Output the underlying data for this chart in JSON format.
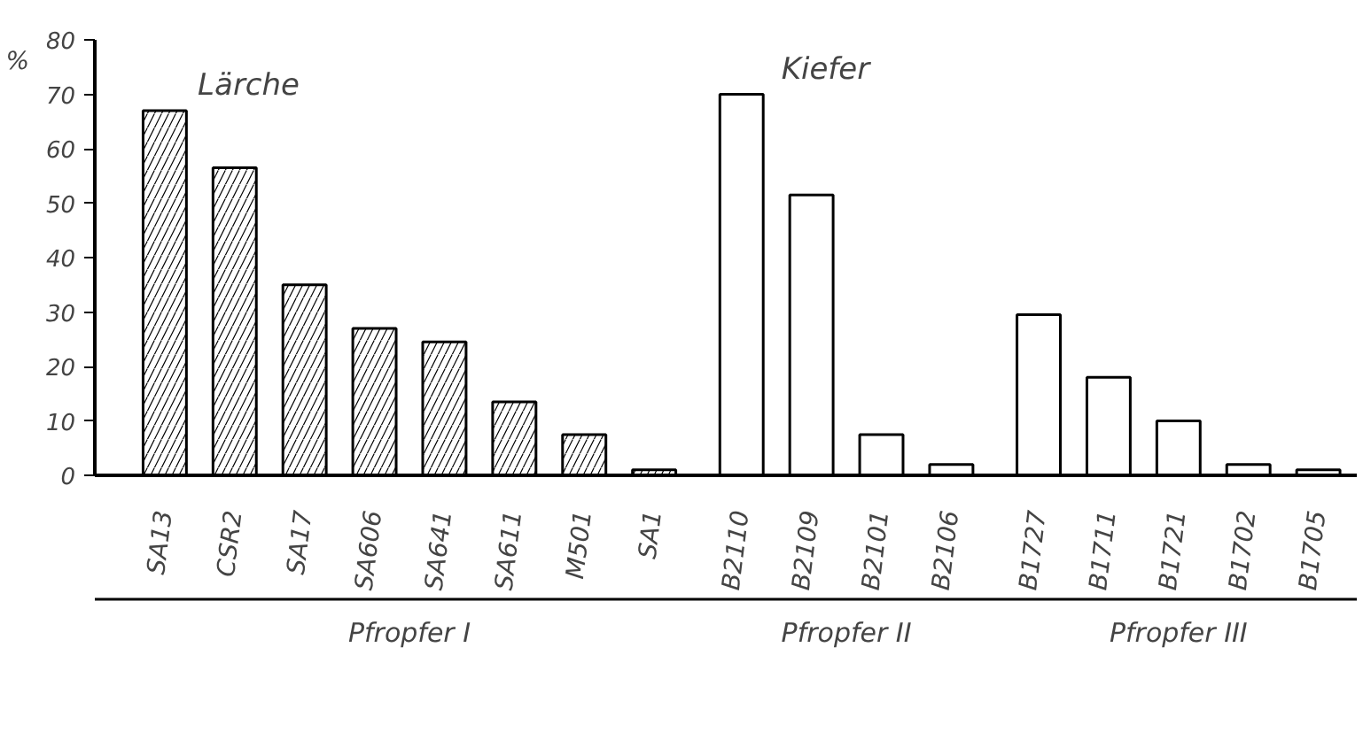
{
  "chart_data": {
    "type": "bar",
    "ylabel": "%",
    "categories": [
      "SA13",
      "CSR2",
      "SA17",
      "SA606",
      "SA641",
      "SA611",
      "M501",
      "SA1",
      "B2110",
      "B2109",
      "B2101",
      "B2106",
      "B1727",
      "B1711",
      "B1721",
      "B1702",
      "B1705"
    ],
    "series": [
      {
        "name": "Lärche",
        "color": "#ffffff",
        "values": [
          67,
          56.5,
          35,
          27,
          24.5,
          13.5,
          7.5,
          1,
          null,
          null,
          null,
          null,
          null,
          null,
          null,
          null,
          null
        ]
      },
      {
        "name": "Kiefer",
        "color": "#ffffff",
        "values": [
          null,
          null,
          null,
          null,
          null,
          null,
          null,
          null,
          70,
          51.5,
          7.5,
          2,
          null,
          null,
          null,
          null,
          null
        ]
      },
      {
        "color": "#ffffff",
        "values": [
          null,
          null,
          null,
          null,
          null,
          null,
          null,
          null,
          null,
          null,
          null,
          null,
          29.5,
          18,
          10,
          2,
          1
        ]
      }
    ],
    "annotations": [
      "Pfropfer I",
      "Pfropfer II",
      "Pfropfer III"
    ],
    "ylim": [
      0,
      80
    ],
    "yticks": [
      0,
      10,
      20,
      30,
      40,
      50,
      60,
      70,
      80
    ],
    "grid": false,
    "legend": false
  }
}
